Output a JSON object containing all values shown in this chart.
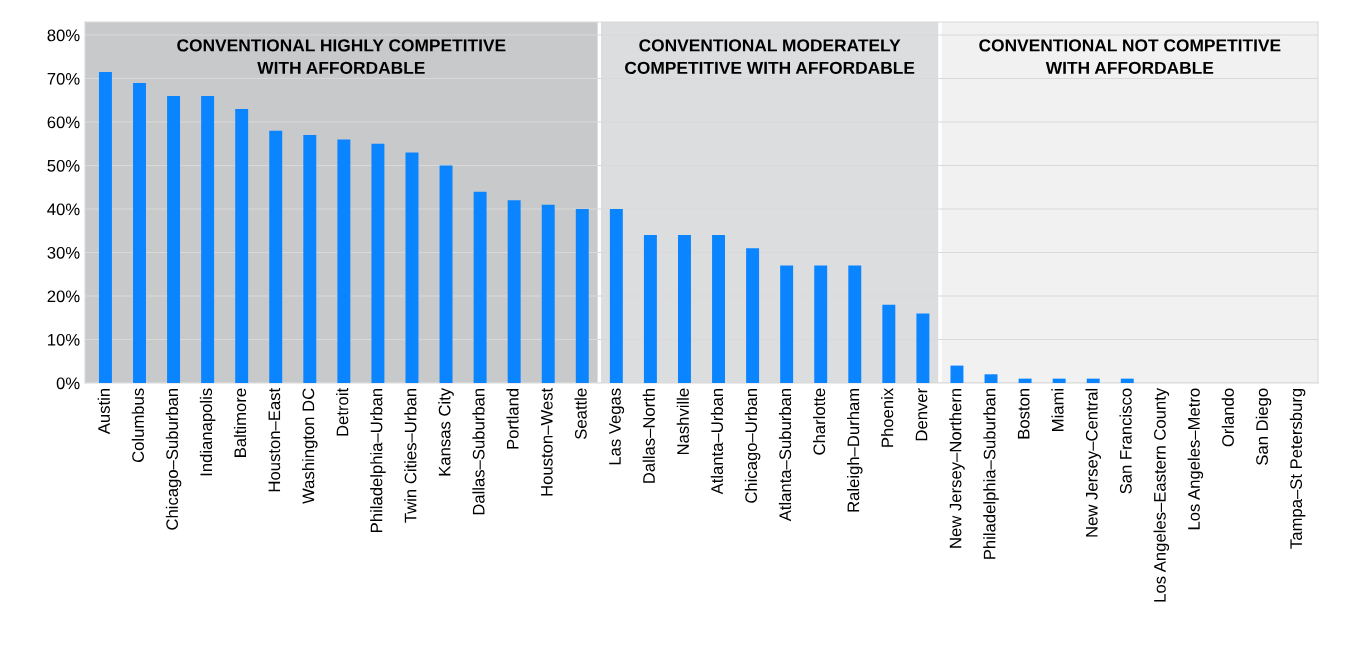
{
  "chart_data": {
    "type": "bar",
    "categories": [
      "Austin",
      "Columbus",
      "Chicago–Suburban",
      "Indianapolis",
      "Baltimore",
      "Houston–East",
      "Washington DC",
      "Detroit",
      "Philadelphia–Urban",
      "Twin Cities–Urban",
      "Kansas City",
      "Dallas–Suburban",
      "Portland",
      "Houston–West",
      "Seattle",
      "Las Vegas",
      "Dallas–North",
      "Nashville",
      "Atlanta–Urban",
      "Chicago–Urban",
      "Atlanta–Suburban",
      "Charlotte",
      "Raleigh–Durham",
      "Phoenix",
      "Denver",
      "New Jersey–Northern",
      "Philadelphia–Suburban",
      "Boston",
      "Miami",
      "New Jersey–Central",
      "San Francisco",
      "Los Angeles–Eastern County",
      "Los Angeles–Metro",
      "Orlando",
      "San Diego",
      "Tampa–St Petersburg"
    ],
    "values": [
      71.5,
      69,
      66,
      66,
      63,
      58,
      57,
      56,
      55,
      53,
      50,
      44,
      42,
      41,
      40,
      40,
      34,
      34,
      34,
      31,
      27,
      27,
      27,
      18,
      16,
      4,
      2,
      1,
      1,
      1,
      1,
      0,
      0,
      0,
      0,
      0
    ],
    "color": "#0a84ff",
    "ylim": [
      0,
      83
    ],
    "yticks": [
      {
        "value": 0,
        "label": "0%"
      },
      {
        "value": 10,
        "label": "10%"
      },
      {
        "value": 20,
        "label": "20%"
      },
      {
        "value": 30,
        "label": "30%"
      },
      {
        "value": 40,
        "label": "40%"
      },
      {
        "value": 50,
        "label": "50%"
      },
      {
        "value": 60,
        "label": "60%"
      },
      {
        "value": 70,
        "label": "70%"
      },
      {
        "value": 80,
        "label": "80%"
      }
    ],
    "grid": "y",
    "bands": [
      {
        "axis": "x",
        "from": "Austin",
        "to": "Seattle",
        "label": "CONVENTIONAL HIGHLY COMPETITIVE\nWITH AFFORDABLE",
        "color": "#c8c9cb"
      },
      {
        "axis": "x",
        "from": "Las Vegas",
        "to": "Denver",
        "label": "CONVENTIONAL MODERATELY\nCOMPETITIVE WITH AFFORDABLE",
        "color": "#dcdddf"
      },
      {
        "axis": "x",
        "from": "New Jersey–Northern",
        "to": "Tampa–St Petersburg",
        "label": "CONVENTIONAL NOT COMPETITIVE\nWITH AFFORDABLE",
        "color": "#f1f1f1"
      }
    ]
  }
}
